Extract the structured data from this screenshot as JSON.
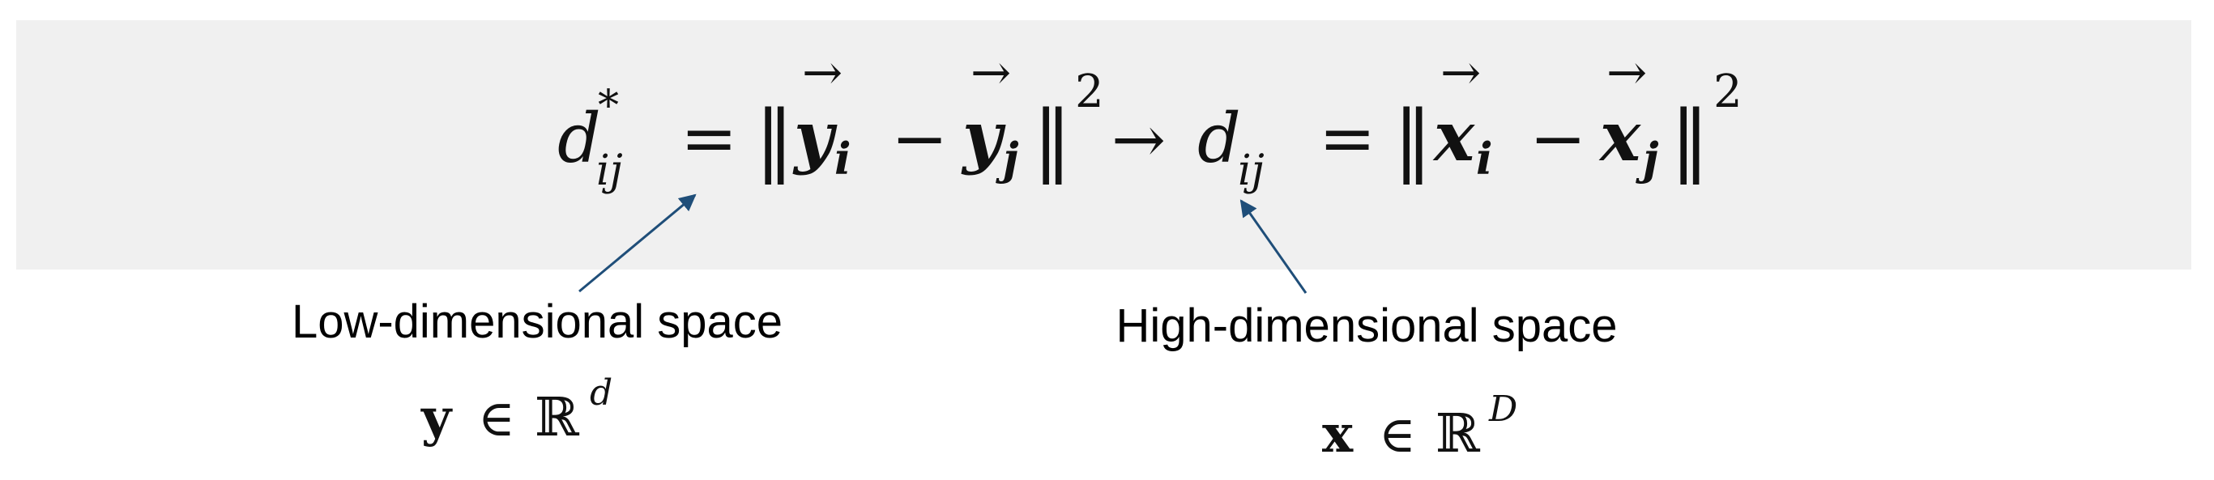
{
  "colors": {
    "banner": "#f0f0f0",
    "arrow": "#1f4e79",
    "text": "#000000"
  },
  "equation": {
    "lhs_symbol": "d",
    "lhs_superscript": "*",
    "lhs_subscript": "ij",
    "equals": "=",
    "norm_bar": "‖",
    "y_i": "y",
    "y_i_sub": "i",
    "minus": "−",
    "y_j": "y",
    "y_j_sub": "j",
    "vec_arrow": "⃗",
    "power": "2",
    "maps_to": "→",
    "rhs_symbol": "d",
    "rhs_subscript": "ij",
    "x_i": "x",
    "x_i_sub": "i",
    "x_j": "x",
    "x_j_sub": "j"
  },
  "annotations": {
    "low": {
      "label": "Low-dimensional space",
      "var": "y",
      "member": "∈",
      "reals": "ℝ",
      "dim": "d"
    },
    "high": {
      "label": "High-dimensional space",
      "var": "x",
      "member": "∈",
      "reals": "ℝ",
      "dim": "D"
    }
  }
}
